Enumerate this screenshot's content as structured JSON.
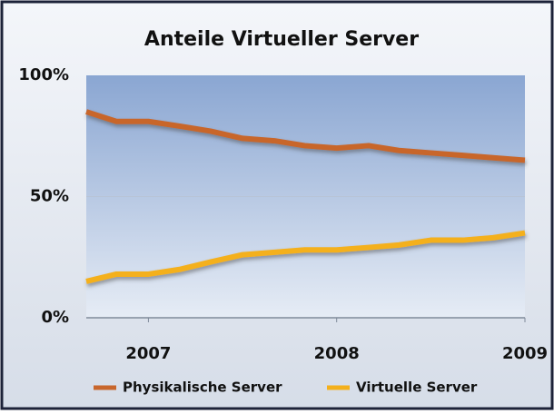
{
  "chart_data": {
    "type": "line",
    "title": "Anteile Virtueller Server",
    "x": [
      2006.67,
      2006.83,
      2007.0,
      2007.17,
      2007.33,
      2007.5,
      2007.67,
      2007.83,
      2008.0,
      2008.17,
      2008.33,
      2008.5,
      2008.67,
      2008.83,
      2009.0
    ],
    "series": [
      {
        "name": "Physikalische Server",
        "color": "#c8662c",
        "values": [
          85,
          81,
          81,
          79,
          77,
          74,
          73,
          71,
          70,
          71,
          69,
          68,
          67,
          66,
          65
        ]
      },
      {
        "name": "Virtuelle Server",
        "color": "#f4b01c",
        "values": [
          15,
          18,
          18,
          20,
          23,
          26,
          27,
          28,
          28,
          29,
          30,
          32,
          32,
          33,
          35
        ]
      }
    ],
    "xlim": [
      2006.67,
      2009.0
    ],
    "xticks": [
      2007,
      2008,
      2009
    ],
    "ylim": [
      0,
      100
    ],
    "yticks": [
      {
        "value": 0,
        "label": "0%"
      },
      {
        "value": 50,
        "label": "50%"
      },
      {
        "value": 100,
        "label": "100%"
      }
    ],
    "grid": true,
    "legend": "bottom"
  }
}
